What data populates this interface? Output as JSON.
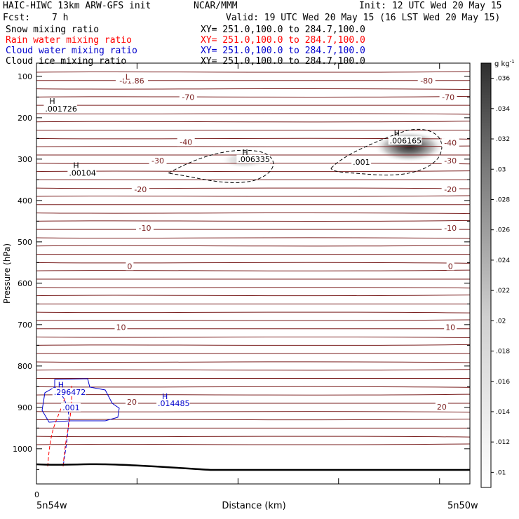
{
  "header": {
    "title": "HAIC-HIWC 13km ARW-GFS init",
    "org": "NCAR/MMM",
    "init": "Init: 12 UTC Wed 20 May 15",
    "fcst_label": "Fcst:",
    "fcst_value": "7 h",
    "valid": "Valid: 19 UTC Wed 20 May 15 (16 LST Wed 20 May 15)"
  },
  "legend": [
    {
      "label": "Snow mixing ratio",
      "xy": "XY= 251.0,100.0 to 284.7,100.0",
      "color": "#000000"
    },
    {
      "label": "Rain water mixing ratio",
      "xy": "XY= 251.0,100.0 to 284.7,100.0",
      "color": "#ff0000"
    },
    {
      "label": "Cloud water mixing ratio",
      "xy": "XY= 251.0,100.0 to 284.7,100.0",
      "color": "#0000cc"
    },
    {
      "label": "Cloud ice mixing ratio",
      "xy": "XY= 251.0,100.0 to 284.7,100.0",
      "color": "#000000"
    }
  ],
  "colorbar": {
    "unit": "g kg",
    "unit_exp": "-1",
    "ticks": [
      ".01",
      ".012",
      ".014",
      ".016",
      ".018",
      ".02",
      ".022",
      ".024",
      ".026",
      ".028",
      ".03",
      ".032",
      ".034",
      ".036"
    ]
  },
  "chart_data": {
    "type": "contour",
    "ylabel": "Pressure (hPa)",
    "xlabel": "Distance (km)",
    "x_left_label": "5n54w",
    "x_right_label": "5n50w",
    "x_zero_label": "0",
    "y_ticks": [
      100,
      200,
      300,
      400,
      500,
      600,
      700,
      800,
      900,
      1000
    ],
    "ylim": [
      1085,
      68
    ],
    "colorbar_range": [
      0.009,
      0.037
    ],
    "temperature_labels": [
      {
        "text": "-81.86",
        "x": 0.22,
        "p": 112
      },
      {
        "text": "L",
        "x": 0.21,
        "p": 103
      },
      {
        "text": "-80",
        "x": 0.9,
        "p": 112
      },
      {
        "text": "-70",
        "x": 0.35,
        "p": 152
      },
      {
        "text": "-70",
        "x": 0.95,
        "p": 152
      },
      {
        "text": "-40",
        "x": 0.345,
        "p": 260
      },
      {
        "text": "-40",
        "x": 0.955,
        "p": 262
      },
      {
        "text": "-30",
        "x": 0.28,
        "p": 305
      },
      {
        "text": "-30",
        "x": 0.955,
        "p": 305
      },
      {
        "text": "-20",
        "x": 0.24,
        "p": 375
      },
      {
        "text": "-20",
        "x": 0.955,
        "p": 375
      },
      {
        "text": "-10",
        "x": 0.25,
        "p": 468
      },
      {
        "text": "-10",
        "x": 0.955,
        "p": 468
      },
      {
        "text": "0",
        "x": 0.215,
        "p": 560
      },
      {
        "text": "0",
        "x": 0.955,
        "p": 560
      },
      {
        "text": "10",
        "x": 0.195,
        "p": 708
      },
      {
        "text": "10",
        "x": 0.955,
        "p": 708
      },
      {
        "text": "20",
        "x": 0.22,
        "p": 888
      },
      {
        "text": "20",
        "x": 0.935,
        "p": 900
      }
    ],
    "maxima": [
      {
        "text": ".001726",
        "x": 0.02,
        "p": 183,
        "hp": 165,
        "color": "#000000"
      },
      {
        "text": ".00104",
        "x": 0.075,
        "p": 338,
        "hp": 320,
        "color": "#000000"
      },
      {
        "text": ".006335",
        "x": 0.465,
        "p": 305,
        "hp": 288,
        "color": "#000000"
      },
      {
        "text": ".006165",
        "x": 0.815,
        "p": 260,
        "hp": 242,
        "color": "#000000"
      },
      {
        "text": ".001",
        "x": 0.73,
        "p": 312,
        "hp": null,
        "color": "#000000"
      },
      {
        "text": ".296472",
        "x": 0.04,
        "p": 868,
        "hp": 850,
        "color": "#0000cc"
      },
      {
        "text": ".001",
        "x": 0.06,
        "p": 905,
        "hp": null,
        "color": "#0000cc"
      },
      {
        "text": ".014485",
        "x": 0.28,
        "p": 895,
        "hp": 878,
        "color": "#0000cc"
      }
    ],
    "snow_maxima": [
      {
        "x": 0.86,
        "p": 270,
        "value": 0.036
      },
      {
        "x": 0.48,
        "p": 302,
        "value": 0.016
      }
    ]
  }
}
